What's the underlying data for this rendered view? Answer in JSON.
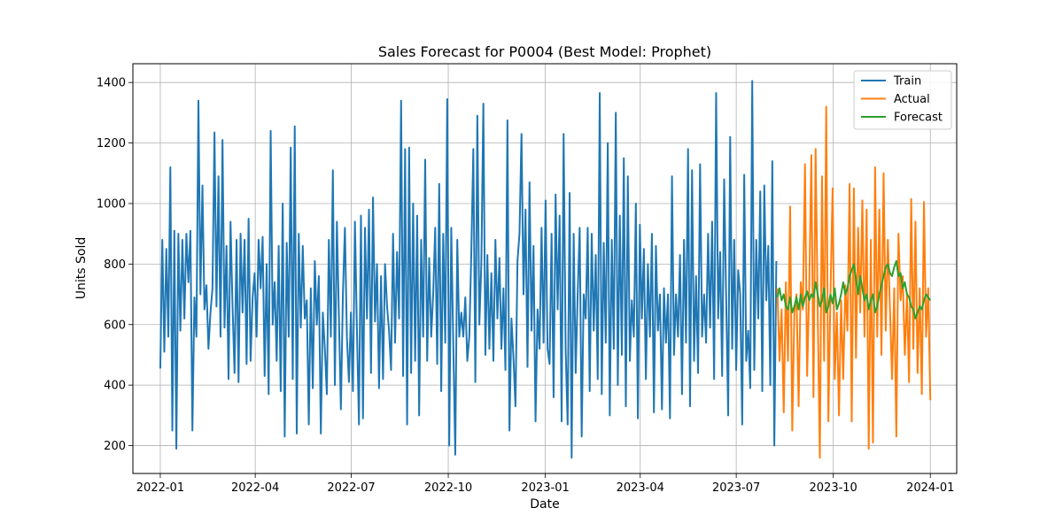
{
  "chart_data": {
    "type": "line",
    "title": "Sales Forecast for P0004 (Best Model: Prophet)",
    "xlabel": "Date",
    "ylabel": "Units Sold",
    "grid": true,
    "legend_position": "top-right",
    "xlim": [
      "2021-12-06",
      "2024-01-26"
    ],
    "ylim": [
      108,
      1462
    ],
    "x_ticks": [
      "2022-01",
      "2022-04",
      "2022-07",
      "2022-10",
      "2023-01",
      "2023-04",
      "2023-07",
      "2023-10",
      "2024-01"
    ],
    "x_tick_dates": [
      "2022-01-01",
      "2022-04-01",
      "2022-07-01",
      "2022-10-01",
      "2023-01-01",
      "2023-04-01",
      "2023-07-01",
      "2023-10-01",
      "2024-01-01"
    ],
    "y_ticks": [
      200,
      400,
      600,
      800,
      1000,
      1200,
      1400
    ],
    "series": [
      {
        "name": "Train",
        "color": "#1f77b4",
        "start": "2022-01-01",
        "end": "2023-08-08",
        "values": [
          455,
          880,
          510,
          850,
          560,
          1120,
          250,
          910,
          190,
          900,
          580,
          880,
          620,
          900,
          740,
          910,
          250,
          690,
          560,
          1340,
          700,
          1060,
          650,
          730,
          520,
          640,
          720,
          1235,
          660,
          1090,
          560,
          1210,
          590,
          860,
          420,
          940,
          660,
          440,
          880,
          410,
          900,
          640,
          880,
          470,
          950,
          480,
          690,
          770,
          560,
          880,
          720,
          890,
          430,
          800,
          370,
          1240,
          600,
          740,
          480,
          860,
          380,
          1000,
          230,
          870,
          560,
          1185,
          420,
          1255,
          240,
          900,
          590,
          860,
          620,
          680,
          270,
          720,
          390,
          810,
          600,
          760,
          240,
          640,
          520,
          370,
          880,
          560,
          1110,
          400,
          940,
          630,
          320,
          700,
          920,
          560,
          410,
          640,
          380,
          940,
          580,
          270,
          960,
          290,
          920,
          620,
          980,
          440,
          1020,
          610,
          800,
          390,
          760,
          420,
          800,
          660,
          580,
          450,
          900,
          540,
          840,
          620,
          1340,
          430,
          1180,
          270,
          1185,
          440,
          1000,
          480,
          960,
          300,
          880,
          560,
          1145,
          480,
          820,
          560,
          700,
          920,
          470,
          1065,
          380,
          900,
          540,
          1345,
          200,
          920,
          540,
          170,
          880,
          560,
          640,
          560,
          690,
          480,
          560,
          840,
          1180,
          410,
          1290,
          600,
          800,
          1330,
          500,
          830,
          520,
          770,
          480,
          880,
          620,
          820,
          520,
          720,
          450,
          1275,
          250,
          620,
          490,
          330,
          810,
          900,
          1230,
          700,
          980,
          460,
          1070,
          580,
          860,
          280,
          650,
          520,
          920,
          540,
          1010,
          520,
          470,
          900,
          360,
          1030,
          650,
          960,
          280,
          1230,
          520,
          270,
          1035,
          160,
          900,
          440,
          700,
          920,
          230,
          700,
          620,
          920,
          380,
          900,
          580,
          830,
          420,
          1365,
          370,
          870,
          540,
          1200,
          300,
          880,
          520,
          1300,
          400,
          960,
          500,
          1150,
          330,
          1090,
          480,
          680,
          560,
          1000,
          290,
          930,
          620,
          850,
          420,
          800,
          560,
          900,
          310,
          860,
          580,
          700,
          320,
          720,
          540,
          700,
          290,
          1090,
          500,
          700,
          560,
          830,
          370,
          880,
          540,
          1180,
          330,
          1110,
          480,
          760,
          440,
          1130,
          560,
          700,
          540,
          900,
          590,
          940,
          420,
          1365,
          620,
          840,
          430,
          1080,
          690,
          300,
          1220,
          520,
          880,
          450,
          780,
          700,
          270,
          1095,
          480,
          580,
          390,
          1405,
          450,
          880,
          620,
          1040,
          380,
          1060,
          680,
          860,
          400,
          1140,
          200,
          810
        ]
      },
      {
        "name": "Actual",
        "color": "#ff7f0e",
        "start": "2023-08-09",
        "end": "2024-01-01",
        "values": [
          720,
          480,
          650,
          310,
          740,
          480,
          990,
          250,
          640,
          700,
          330,
          740,
          650,
          1130,
          430,
          720,
          1160,
          360,
          1180,
          640,
          160,
          1090,
          480,
          1320,
          280,
          700,
          1050,
          420,
          640,
          300,
          680,
          420,
          730,
          580,
          1065,
          280,
          1050,
          490,
          920,
          640,
          1010,
          560,
          980,
          190,
          880,
          210,
          1120,
          560,
          980,
          500,
          1100,
          580,
          880,
          650,
          420,
          720,
          230,
          900,
          680,
          760,
          500,
          700,
          410,
          1015,
          520,
          940,
          440,
          720,
          370,
          1005,
          560,
          720,
          350
        ]
      },
      {
        "name": "Forecast",
        "color": "#2ca02c",
        "start": "2023-08-09",
        "end": "2024-01-01",
        "values": [
          690,
          720,
          680,
          700,
          660,
          650,
          690,
          640,
          660,
          690,
          650,
          700,
          660,
          690,
          710,
          680,
          700,
          690,
          740,
          700,
          660,
          680,
          720,
          640,
          660,
          700,
          670,
          720,
          650,
          670,
          700,
          740,
          700,
          720,
          760,
          780,
          800,
          750,
          700,
          760,
          720,
          680,
          700,
          650,
          680,
          700,
          640,
          660,
          700,
          730,
          760,
          790,
          800,
          770,
          760,
          790,
          810,
          760,
          770,
          720,
          740,
          700,
          690,
          660,
          650,
          620,
          640,
          660,
          650,
          680,
          700,
          690,
          680
        ]
      }
    ]
  }
}
